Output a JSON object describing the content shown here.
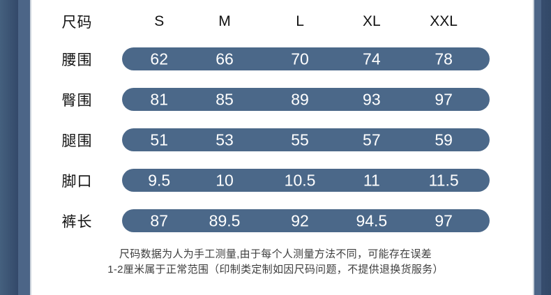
{
  "table": {
    "header": {
      "label": "尺码",
      "sizes": [
        "S",
        "M",
        "L",
        "XL",
        "XXL"
      ]
    },
    "rows": [
      {
        "label": "腰围",
        "values": [
          "62",
          "66",
          "70",
          "74",
          "78"
        ]
      },
      {
        "label": "臀围",
        "values": [
          "81",
          "85",
          "89",
          "93",
          "97"
        ]
      },
      {
        "label": "腿围",
        "values": [
          "51",
          "53",
          "55",
          "57",
          "59"
        ]
      },
      {
        "label": "脚口",
        "values": [
          "9.5",
          "10",
          "10.5",
          "11",
          "11.5"
        ]
      },
      {
        "label": "裤长",
        "values": [
          "87",
          "89.5",
          "92",
          "94.5",
          "97"
        ]
      }
    ]
  },
  "footer": {
    "line1": "尺码数据为人为手工测量,由于每个人测量方法不同，可能存在误差",
    "line2": "1-2厘米属于正常范围（印制类定制如因尺码问题，不提供退换货服务）"
  },
  "colors": {
    "bar_fill": "#4b6889",
    "border_dark": "#33496a",
    "border_light": "#4c6587",
    "bar_text": "#ffffff",
    "label_text": "#121212",
    "footer_text": "#3e3e3e"
  },
  "chart_data": {
    "type": "table",
    "columns": [
      "尺码",
      "S",
      "M",
      "L",
      "XL",
      "XXL"
    ],
    "rows": [
      [
        "腰围",
        62,
        66,
        70,
        74,
        78
      ],
      [
        "臀围",
        81,
        85,
        89,
        93,
        97
      ],
      [
        "腿围",
        51,
        53,
        55,
        57,
        59
      ],
      [
        "脚口",
        9.5,
        10,
        10.5,
        11,
        11.5
      ],
      [
        "裤长",
        87,
        89.5,
        92,
        94.5,
        97
      ]
    ],
    "notes": "尺码数据为人为手工测量,由于每个人测量方法不同，可能存在误差1-2厘米属于正常范围（印制类定制如因尺码问题，不提供退换货服务）"
  }
}
